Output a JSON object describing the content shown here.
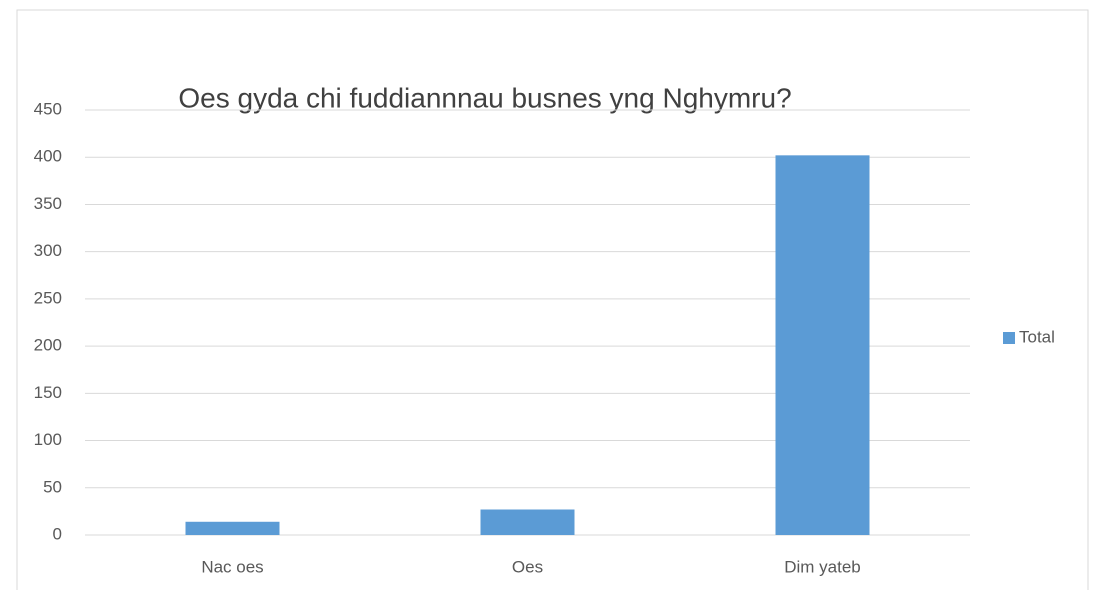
{
  "chart_data": {
    "type": "bar",
    "title": "Oes gyda chi fuddiannnau busnes yng Nghymru?",
    "categories": [
      "Nac oes",
      "Oes",
      "Dim yateb"
    ],
    "series": [
      {
        "name": "Total",
        "color": "#5b9bd5",
        "values": [
          14,
          27,
          402
        ]
      }
    ],
    "ylim": [
      0,
      450
    ],
    "yticks": [
      0,
      50,
      100,
      150,
      200,
      250,
      300,
      350,
      400,
      450
    ],
    "grid": true,
    "legend": "right"
  }
}
